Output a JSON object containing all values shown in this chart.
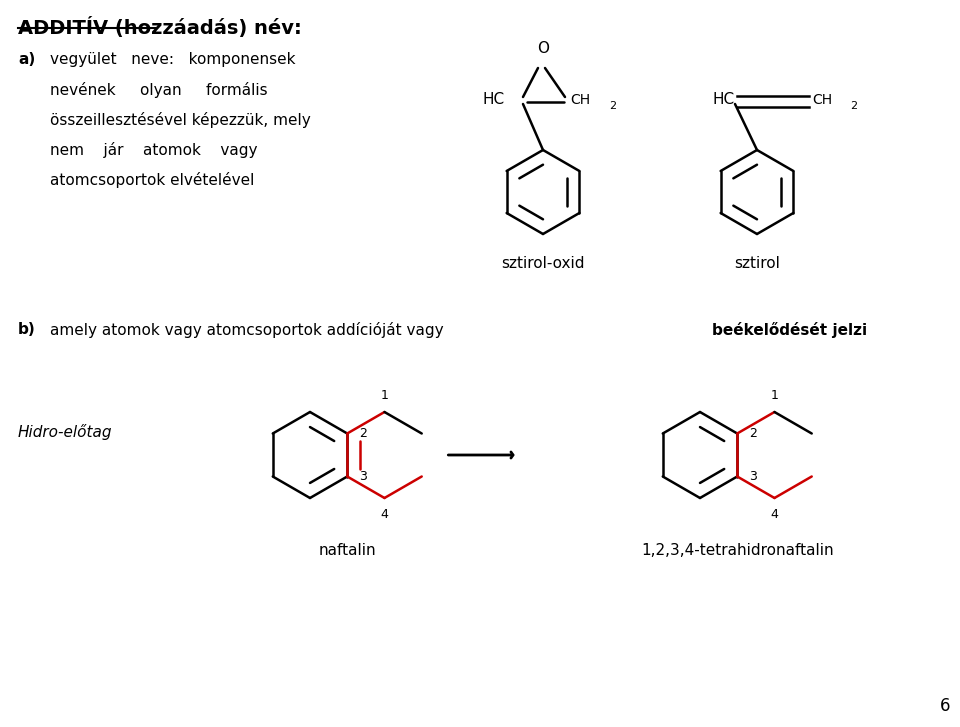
{
  "title_bold": "ADDITÍV (hozzáadás) név:",
  "bg_color": "#ffffff",
  "text_color": "#000000",
  "red_color": "#cc0000",
  "line_width": 1.8,
  "fig_width": 9.6,
  "fig_height": 7.27,
  "label_sztirol_oxid": "sztirol-oxid",
  "label_sztirol": "sztirol",
  "label_naftalin": "naftalin",
  "label_tetrahidro": "1,2,3,4-tetrahidronaftalin",
  "label_hidro": "Hidro-előtag",
  "page_number": "6",
  "text_a_line1": "vegyület   neve:   komponensek",
  "text_a_line2": "nevének     olyan     formális",
  "text_a_line3": "összeillesztésével képezzük, mely",
  "text_a_line4": "nem    jár    atomok    vagy",
  "text_a_line5": "atomcsoportok elvételével",
  "text_b": "amely atomok vagy atomcsoportok addícióját vagy ",
  "text_b_bold": "beékelődését jelzi"
}
